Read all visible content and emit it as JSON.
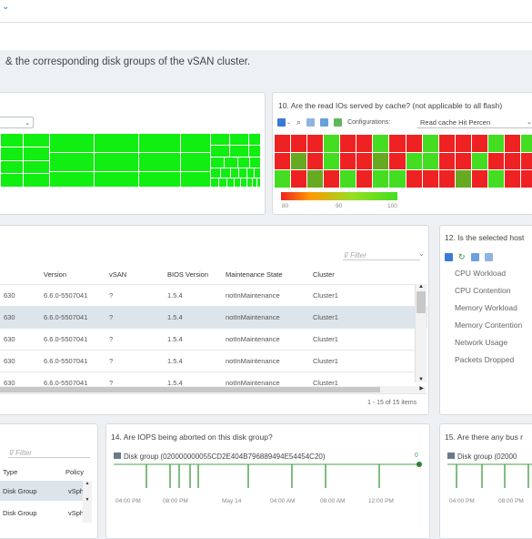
{
  "header": {
    "chevron": "⌄",
    "description": "& the corresponding disk groups of the vSAN cluster."
  },
  "panel_treemap": {
    "select_caret": "⌄"
  },
  "panel_cache": {
    "title": "10. Are the read IOs served by cache? (not applicable to all flash)",
    "config_label": "Configurations:",
    "config_value": "Read cache Hit Percen",
    "legend_ticks": [
      "80",
      "90",
      "100"
    ],
    "colors": {
      "red": "#ee2222",
      "green": "#44dd22",
      "mid": "#66aa22"
    }
  },
  "panel_hosts": {
    "filter_placeholder": "Filter",
    "columns": [
      "Version",
      "vSAN",
      "BIOS Version",
      "Maintenance State",
      "Cluster"
    ],
    "rows": [
      [
        "630",
        "6.6.0-5507041",
        "?",
        "1.5.4",
        "notInMaintenance",
        "Cluster1"
      ],
      [
        "630",
        "6.6.0-5507041",
        "?",
        "1.5.4",
        "notInMaintenance",
        "Cluster1"
      ],
      [
        "630",
        "6.6.0-5507041",
        "?",
        "1.5.4",
        "notInMaintenance",
        "Cluster1"
      ],
      [
        "630",
        "6.6.0-5507041",
        "?",
        "1.5.4",
        "notInMaintenance",
        "Cluster1"
      ],
      [
        "630",
        "6.6.0-5507041",
        "?",
        "1.5.4",
        "notInMaintenance",
        "Cluster1"
      ]
    ],
    "selected_row": 1,
    "footer": "1 - 15 of 15 items"
  },
  "panel_workload": {
    "title": "12. Is the selected host",
    "items": [
      "CPU Workload",
      "CPU Contention",
      "Memory Workload",
      "Memory Contention",
      "Network Usage",
      "Packets Dropped"
    ]
  },
  "panel_diskgroups": {
    "filter_placeholder": "Filter",
    "columns": [
      "Type",
      "Policy"
    ],
    "rows": [
      [
        "Disk Group",
        "vSph"
      ],
      [
        "Disk Group",
        "vSph"
      ]
    ]
  },
  "panel_iops": {
    "title": "14. Are IOPS being aborted on this disk group?",
    "series_label": "Disk group (020000000055CD2E404B796889494E54454C20)",
    "end_value": "0",
    "x_ticks": [
      "04:00 PM",
      "08:00 PM",
      "May 14",
      "04:00 AM",
      "08:00 AM",
      "12:00 PM"
    ]
  },
  "panel_bus": {
    "title": "15. Are there any bus r",
    "series_label": "Disk group (02000",
    "x_ticks": [
      "04:00 PM",
      "08:00 PM"
    ]
  }
}
